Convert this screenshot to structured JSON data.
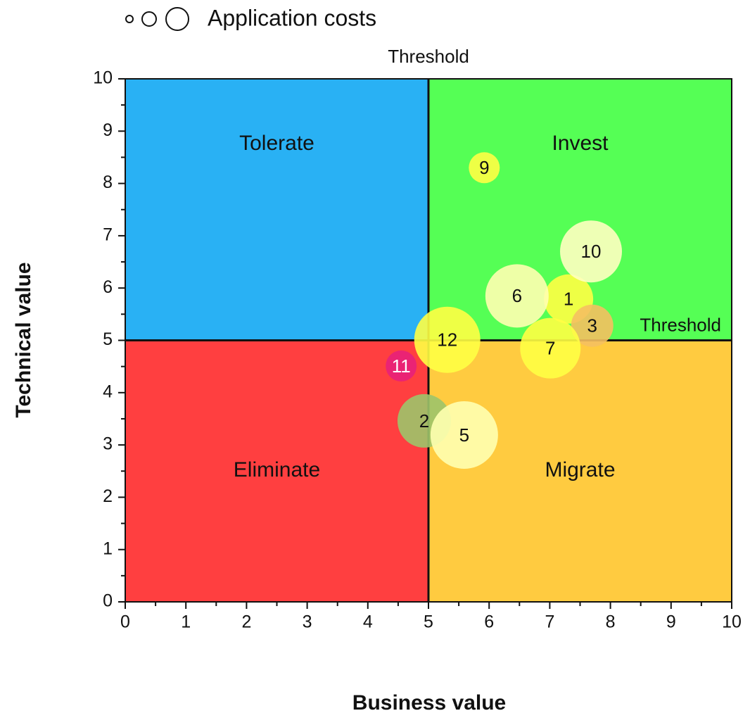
{
  "chart_data": {
    "type": "bubble",
    "legend_label": "Application costs",
    "x_label": "Business value",
    "y_label": "Technical value",
    "xlim": [
      0,
      10
    ],
    "ylim": [
      0,
      10
    ],
    "xticks": [
      0,
      1,
      2,
      3,
      4,
      5,
      6,
      7,
      8,
      9,
      10
    ],
    "yticks": [
      0,
      1,
      2,
      3,
      4,
      5,
      6,
      7,
      8,
      9,
      10
    ],
    "minor_xticks": [
      0.5,
      1.5,
      2.5,
      3.5,
      4.5,
      5.5,
      6.5,
      7.5,
      8.5,
      9.5
    ],
    "minor_yticks": [
      0.5,
      1.5,
      2.5,
      3.5,
      4.5,
      5.5,
      6.5,
      7.5,
      8.5,
      9.5
    ],
    "x_threshold": 5,
    "y_threshold": 5,
    "x_threshold_label": "Threshold",
    "y_threshold_label": "Threshold",
    "quadrants": [
      {
        "label": "Tolerate",
        "color": "#29b1f4"
      },
      {
        "label": "Invest",
        "color": "#55ff55"
      },
      {
        "label": "Eliminate",
        "color": "#ff3f40"
      },
      {
        "label": "Migrate",
        "color": "#ffcb40"
      }
    ],
    "series": [
      {
        "labels": [
          "1",
          "2",
          "3",
          "5",
          "6",
          "7",
          "9",
          "10",
          "11",
          "12"
        ],
        "x": [
          7.31,
          4.93,
          7.7,
          5.59,
          6.46,
          7.01,
          5.92,
          7.68,
          4.55,
          5.31
        ],
        "values": [
          5.79,
          3.46,
          5.28,
          3.19,
          5.85,
          4.85,
          8.3,
          6.7,
          4.51,
          5.01
        ],
        "sizes": [
          35,
          38,
          30,
          48,
          45,
          43,
          22,
          44,
          22,
          47
        ],
        "colors": [
          "#ffff44",
          "#9dc46a",
          "#f5c060",
          "#ffffb0",
          "#ffffb0",
          "#ffff44",
          "#ffff44",
          "#ffffc0",
          "#e8207a",
          "#ffff44"
        ]
      }
    ]
  }
}
